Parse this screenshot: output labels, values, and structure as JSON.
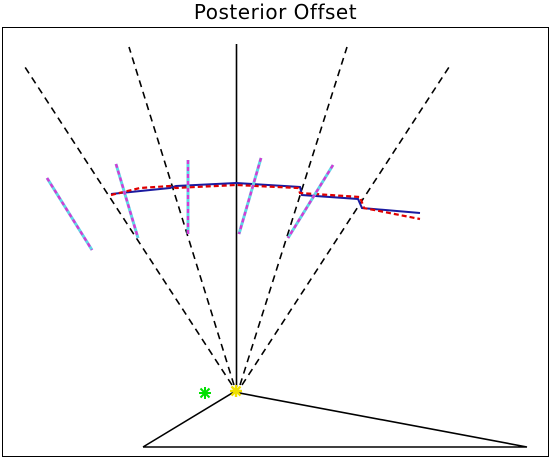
{
  "figure": {
    "title": "Posterior Offset"
  },
  "colors": {
    "frame": "#000000",
    "dashed_rays": "#000000",
    "fitted_curve": "#1a1aa0",
    "model_curve": "#e00000",
    "segment_primary": "#5fd7e6",
    "segment_overlay": "#d43ad4",
    "marker_green": "#00e000",
    "marker_yellow": "#f0e000"
  },
  "icons": {
    "green_marker": "asterisk-icon",
    "yellow_marker": "star-icon"
  }
}
